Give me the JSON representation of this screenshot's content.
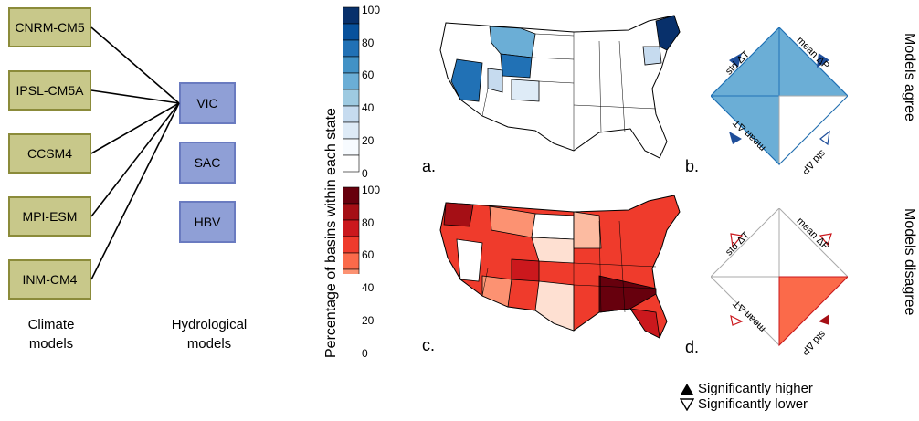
{
  "climate_models": [
    "CNRM-CM5",
    "IPSL-CM5A",
    "CCSM4",
    "MPI-ESM",
    "INM-CM4"
  ],
  "hydro_models": [
    "VIC",
    "SAC",
    "HBV"
  ],
  "captions": {
    "climate_line1": "Climate",
    "climate_line2": "models",
    "hydro_line1": "Hydrological",
    "hydro_line2": "models"
  },
  "colorbar": {
    "label": "Percentage of basins within each state",
    "ticks": [
      "100",
      "80",
      "60",
      "40",
      "20",
      "0"
    ],
    "blues": [
      "#08306b",
      "#08519c",
      "#2171b5",
      "#4292c6",
      "#6baed6",
      "#9ecae1",
      "#c6dbef",
      "#deebf7",
      "#f7fbff",
      "#ffffff"
    ],
    "reds": [
      "#67000d",
      "#a50f15",
      "#cb181d",
      "#ef3b2c",
      "#fb6a4a",
      "#fc9272",
      "#fcbba1",
      "#fee0d2",
      "#fff5f0",
      "#ffffff"
    ]
  },
  "panels": {
    "a": "a.",
    "b": "b.",
    "c": "c.",
    "d": "d."
  },
  "diamond_labels": {
    "std_t": "std ΔT",
    "mean_p": "mean ΔP",
    "mean_t": "mean ΔT",
    "std_p": "std ΔP"
  },
  "side_labels": {
    "agree": "Models agree",
    "disagree": "Models disagree"
  },
  "legend": {
    "higher": "Significantly higher",
    "lower": "Significantly lower"
  },
  "colors": {
    "agree_fill": "#6baed6",
    "disagree_fill": "#fb6a4a",
    "blue_marker": "#1f4e9a",
    "red_marker": "#a50f15"
  }
}
